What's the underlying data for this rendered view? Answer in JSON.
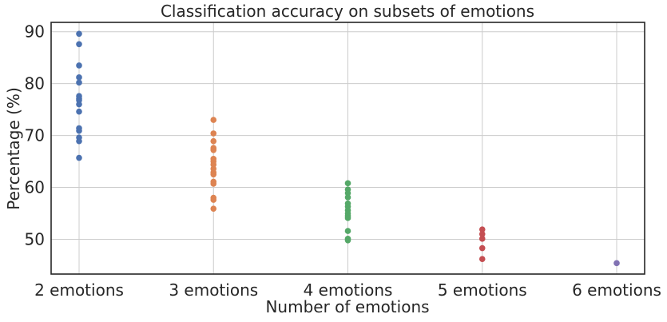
{
  "chart_data": {
    "type": "scatter",
    "title": "Classification accuracy on subsets of emotions",
    "xlabel": "Number of emotions",
    "ylabel": "Percentage (%)",
    "categories": [
      "2 emotions",
      "3 emotions",
      "4 emotions",
      "5 emotions",
      "6 emotions"
    ],
    "ylim": [
      43.3,
      91.8
    ],
    "yticks": [
      50,
      60,
      70,
      80,
      90
    ],
    "grid": true,
    "series": [
      {
        "color": "#4c72b0",
        "values": [
          89.6,
          87.6,
          83.5,
          81.2,
          80.2,
          77.6,
          77.1,
          76.8,
          76.0,
          74.6,
          71.4,
          70.9,
          69.6,
          68.9,
          65.7
        ]
      },
      {
        "color": "#dd8452",
        "values": [
          73.0,
          70.4,
          68.9,
          67.6,
          67.2,
          65.5,
          65.0,
          64.4,
          63.6,
          62.9,
          62.5,
          61.1,
          60.7,
          58.0,
          57.6,
          55.9
        ]
      },
      {
        "color": "#55a868",
        "values": [
          60.8,
          59.6,
          58.9,
          58.1,
          56.9,
          56.3,
          55.6,
          55.0,
          54.5,
          54.1,
          51.6,
          50.1,
          49.8
        ]
      },
      {
        "color": "#c44e52",
        "values": [
          51.9,
          51.0,
          50.1,
          48.3,
          46.2
        ]
      },
      {
        "color": "#8172b3",
        "values": [
          45.4
        ]
      }
    ]
  }
}
